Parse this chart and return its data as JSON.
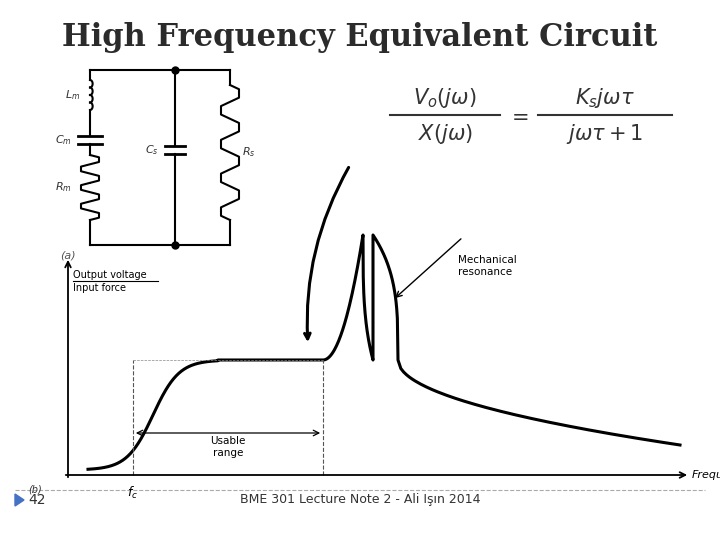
{
  "title": "High Frequency Equivalent Circuit",
  "title_fontsize": 22,
  "title_fontweight": "bold",
  "footer_center": "BME 301 Lecture Note 2 - Ali Işın 2014",
  "footer_fontsize": 9,
  "bg_color": "#ffffff",
  "text_color": "#333333",
  "circuit_label": "(a)",
  "graph_ylabel_top": "Output voltage",
  "graph_ylabel_bot": "Input force",
  "graph_xlabel": "Frequency",
  "graph_fc_label": "f_c",
  "graph_usable_label": "Usable\nrange",
  "graph_mech_label": "Mechanical\nresonance"
}
